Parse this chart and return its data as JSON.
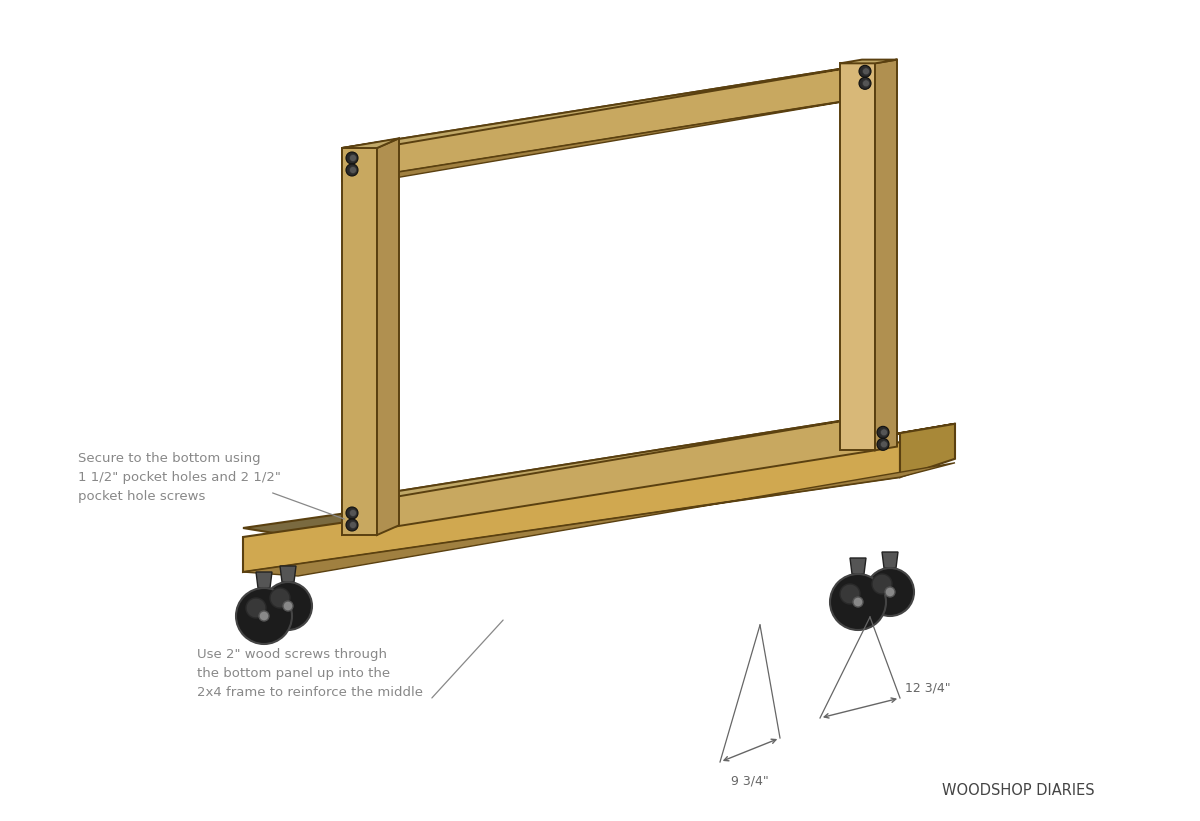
{
  "bg_color": "#ffffff",
  "wood_face_light": "#D8B878",
  "wood_face_main": "#C8A860",
  "wood_side_light": "#C0A060",
  "wood_side_dark": "#B09050",
  "wood_top_face": "#C0A868",
  "wood_underside": "#A08040",
  "wood_edge_color": "#5A4010",
  "plywood_top_surface": "#7A6A40",
  "plywood_front_face": "#D0A850",
  "plywood_right_face": "#A88838",
  "screw_dark": "#2a2a2a",
  "screw_mid": "#555555",
  "dim_color": "#666666",
  "text_color": "#888888",
  "brand_color": "#444444",
  "annotation1_text": "Secure to the bottom using\n1 1/2\" pocket holes and 2 1/2\"\npocket hole screws",
  "annotation2_text": "Use 2\" wood screws through\nthe bottom panel up into the\n2x4 frame to reinforce the middle",
  "dim1_text": "9 3/4\"",
  "dim2_text": "12 3/4\"",
  "brand_text": "WOODSHOP DIARIES"
}
